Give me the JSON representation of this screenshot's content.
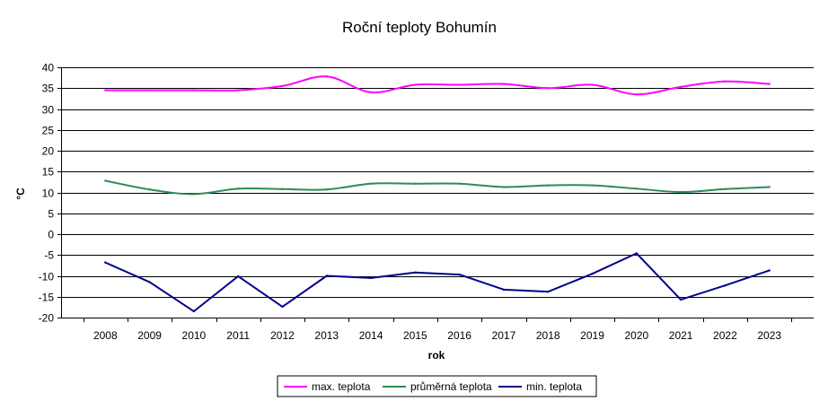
{
  "chart_data": {
    "type": "line",
    "title": "Roční teploty Bohumín",
    "xlabel": "rok",
    "ylabel": "°C",
    "ylim": [
      -20,
      40
    ],
    "ytick_step": 5,
    "grid": "horizontal",
    "legend_position": "bottom",
    "categories": [
      "2008",
      "2009",
      "2010",
      "2011",
      "2012",
      "2013",
      "2014",
      "2015",
      "2016",
      "2017",
      "2018",
      "2019",
      "2020",
      "2021",
      "2022",
      "2023"
    ],
    "series": [
      {
        "name": "max. teplota",
        "color": "#ff00ff",
        "values": [
          34.5,
          34.5,
          34.5,
          34.5,
          35.5,
          37.8,
          34.0,
          35.8,
          35.8,
          36.0,
          35.0,
          35.8,
          33.5,
          35.3,
          36.6,
          36.0
        ]
      },
      {
        "name": "průměrná teplota",
        "color": "#2e8b57",
        "values": [
          12.8,
          10.7,
          9.6,
          10.9,
          10.8,
          10.7,
          12.1,
          12.1,
          12.1,
          11.3,
          11.7,
          11.7,
          10.9,
          10.1,
          10.8,
          11.3
        ]
      },
      {
        "name": "min. teplota",
        "color": "#00008b",
        "values": [
          -6.8,
          -11.5,
          -18.5,
          -10.1,
          -17.4,
          -10.0,
          -10.5,
          -9.2,
          -9.7,
          -13.3,
          -13.8,
          -9.5,
          -4.6,
          -15.7,
          -12.3,
          -8.7
        ]
      }
    ]
  }
}
